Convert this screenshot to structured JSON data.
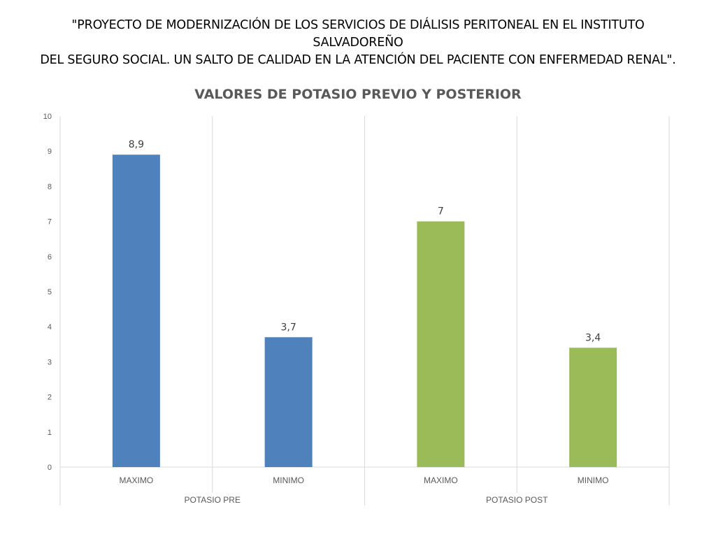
{
  "slide": {
    "title_line1": "\"PROYECTO DE MODERNIZACIÓN DE LOS SERVICIOS DE DIÁLISIS PERITONEAL EN EL INSTITUTO SALVADOREÑO",
    "title_line2": "DEL SEGURO SOCIAL. UN SALTO DE CALIDAD EN LA ATENCIÓN DEL PACIENTE CON ENFERMEDAD RENAL\"."
  },
  "chart_data": {
    "type": "bar",
    "title": "VALORES DE POTASIO PREVIO Y POSTERIOR",
    "xlabel": "",
    "ylabel": "",
    "ylim": [
      0,
      10
    ],
    "yticks": [
      "0",
      "1",
      "2",
      "3",
      "4",
      "5",
      "6",
      "7",
      "8",
      "9",
      "10"
    ],
    "grid": true,
    "legend": "none",
    "groups": [
      {
        "label": "POTASIO PRE",
        "color": "#4F81BD",
        "categories": [
          "MAXIMO",
          "MINIMO"
        ],
        "values": [
          8.9,
          3.7
        ],
        "value_labels": [
          "8,9",
          "3,7"
        ]
      },
      {
        "label": "POTASIO POST",
        "color": "#9BBB59",
        "categories": [
          "MAXIMO",
          "MINIMO"
        ],
        "values": [
          7,
          3.4
        ],
        "value_labels": [
          "7",
          "3,4"
        ]
      }
    ]
  }
}
